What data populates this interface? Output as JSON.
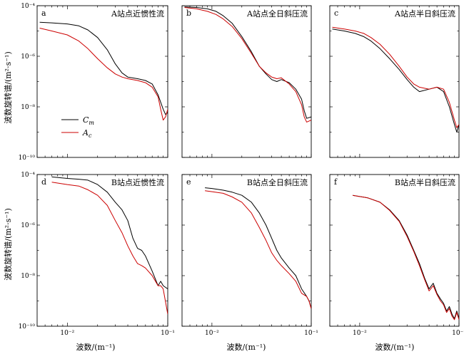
{
  "figure": {
    "ylabel": "波数旋转谱/(m²·s⁻¹)",
    "xlabel": "波数/(m⁻¹)"
  },
  "legend": {
    "entries": [
      {
        "label": "Cm",
        "color": "#000000"
      },
      {
        "label": "Ac",
        "color": "#cc0000"
      }
    ],
    "placement": "panel-a-lower-left"
  },
  "chart_data": [
    {
      "type": "line",
      "letter": "a",
      "title": "A站点近惯性流",
      "xscale": "log",
      "yscale": "log",
      "xlim": [
        0.005,
        0.1
      ],
      "ylim": [
        1e-10,
        0.0001
      ],
      "xtick_labels": [],
      "ytick_labels": [
        "10⁻⁴",
        "10⁻⁶",
        "10⁻⁸",
        "10⁻¹⁰"
      ],
      "series": [
        {
          "name": "Cm",
          "color": "#000000",
          "x": [
            0.0053,
            0.007,
            0.01,
            0.013,
            0.016,
            0.02,
            0.025,
            0.03,
            0.035,
            0.04,
            0.05,
            0.06,
            0.07,
            0.08,
            0.09,
            0.095,
            0.1
          ],
          "y": [
            2.2e-05,
            2.1e-05,
            1.9e-05,
            1.6e-05,
            1.1e-05,
            5.5e-06,
            1.8e-06,
            5e-07,
            2.2e-07,
            1.5e-07,
            1.3e-07,
            1.1e-07,
            8e-08,
            3e-08,
            8e-09,
            5e-09,
            6e-09
          ]
        },
        {
          "name": "Ac",
          "color": "#cc0000",
          "x": [
            0.0053,
            0.007,
            0.01,
            0.013,
            0.016,
            0.02,
            0.025,
            0.03,
            0.035,
            0.04,
            0.05,
            0.06,
            0.07,
            0.08,
            0.085,
            0.09,
            0.095,
            0.1
          ],
          "y": [
            1.3e-05,
            1e-05,
            7e-06,
            4e-06,
            2e-06,
            8e-07,
            3.5e-07,
            2e-07,
            1.5e-07,
            1.3e-07,
            1.1e-07,
            9e-08,
            6e-08,
            2.5e-08,
            8e-09,
            3e-09,
            4e-09,
            8e-09
          ]
        }
      ]
    },
    {
      "type": "line",
      "letter": "b",
      "title": "A站点全日斜压流",
      "xscale": "log",
      "yscale": "log",
      "xlim": [
        0.005,
        0.1
      ],
      "ylim": [
        1e-10,
        0.0001
      ],
      "xtick_labels": [],
      "ytick_labels": [],
      "series": [
        {
          "name": "Cm",
          "color": "#000000",
          "x": [
            0.0053,
            0.007,
            0.009,
            0.011,
            0.013,
            0.016,
            0.02,
            0.025,
            0.03,
            0.035,
            0.04,
            0.045,
            0.05,
            0.06,
            0.07,
            0.08,
            0.085,
            0.09,
            0.1
          ],
          "y": [
            9e-05,
            8.5e-05,
            7.5e-05,
            6e-05,
            4e-05,
            2e-05,
            6e-06,
            1.5e-06,
            4e-07,
            2e-07,
            1.2e-07,
            1e-07,
            1.2e-07,
            9e-08,
            5e-08,
            2e-08,
            7e-09,
            3.5e-09,
            4e-09
          ]
        },
        {
          "name": "Ac",
          "color": "#cc0000",
          "x": [
            0.0053,
            0.007,
            0.009,
            0.011,
            0.013,
            0.016,
            0.02,
            0.025,
            0.03,
            0.035,
            0.04,
            0.045,
            0.05,
            0.06,
            0.07,
            0.08,
            0.085,
            0.09,
            0.1
          ],
          "y": [
            8.5e-05,
            7.5e-05,
            6e-05,
            4.5e-05,
            3e-05,
            1.5e-05,
            5e-06,
            1.3e-06,
            4e-07,
            2.2e-07,
            1.5e-07,
            1.3e-07,
            1.4e-07,
            8e-08,
            4e-08,
            1.2e-08,
            4e-09,
            2.5e-09,
            3e-09
          ]
        }
      ]
    },
    {
      "type": "line",
      "letter": "c",
      "title": "A站点半日斜压流",
      "xscale": "log",
      "yscale": "log",
      "xlim": [
        0.005,
        0.1
      ],
      "ylim": [
        1e-10,
        0.0001
      ],
      "xtick_labels": [],
      "ytick_labels": [],
      "series": [
        {
          "name": "Cm",
          "color": "#000000",
          "x": [
            0.0053,
            0.007,
            0.009,
            0.011,
            0.013,
            0.016,
            0.02,
            0.025,
            0.03,
            0.035,
            0.04,
            0.05,
            0.06,
            0.07,
            0.08,
            0.09,
            0.095,
            0.1
          ],
          "y": [
            1.2e-05,
            1e-05,
            8e-06,
            6e-06,
            4e-06,
            2e-06,
            8e-07,
            3e-07,
            1.2e-07,
            6e-08,
            4e-08,
            5e-08,
            6e-08,
            4e-08,
            1e-08,
            2e-09,
            1e-09,
            2e-09
          ]
        },
        {
          "name": "Ac",
          "color": "#cc0000",
          "x": [
            0.0053,
            0.007,
            0.009,
            0.011,
            0.013,
            0.016,
            0.02,
            0.025,
            0.03,
            0.035,
            0.04,
            0.05,
            0.06,
            0.07,
            0.08,
            0.09,
            0.095,
            0.1
          ],
          "y": [
            1.4e-05,
            1.2e-05,
            1e-05,
            8e-06,
            5.5e-06,
            3e-06,
            1.2e-06,
            4e-07,
            1.5e-07,
            8e-08,
            6e-08,
            5e-08,
            6e-08,
            5e-08,
            1.5e-08,
            3e-09,
            1.5e-09,
            2e-09
          ]
        }
      ]
    },
    {
      "type": "line",
      "letter": "d",
      "title": "B站点近惯性流",
      "xscale": "log",
      "yscale": "log",
      "xlim": [
        0.005,
        0.1
      ],
      "ylim": [
        1e-10,
        0.0001
      ],
      "xtick_labels": [
        "10⁻²",
        "10⁻¹"
      ],
      "ytick_labels": [
        "10⁻⁴",
        "10⁻⁶",
        "10⁻⁸",
        "10⁻¹⁰"
      ],
      "series": [
        {
          "name": "Cm",
          "color": "#000000",
          "x": [
            0.007,
            0.01,
            0.013,
            0.016,
            0.02,
            0.025,
            0.03,
            0.035,
            0.04,
            0.045,
            0.05,
            0.055,
            0.06,
            0.07,
            0.08,
            0.085,
            0.09,
            0.1
          ],
          "y": [
            8e-05,
            7e-05,
            6.5e-05,
            6e-05,
            4e-05,
            2e-05,
            8e-06,
            4e-06,
            1.5e-06,
            3e-07,
            1.2e-07,
            1e-07,
            6e-08,
            1.5e-08,
            4e-09,
            6e-09,
            4e-09,
            3e-09
          ]
        },
        {
          "name": "Ac",
          "color": "#cc0000",
          "x": [
            0.007,
            0.01,
            0.013,
            0.016,
            0.02,
            0.025,
            0.03,
            0.035,
            0.04,
            0.045,
            0.05,
            0.055,
            0.06,
            0.07,
            0.08,
            0.085,
            0.09,
            0.1
          ],
          "y": [
            5e-05,
            4e-05,
            3.5e-05,
            2.5e-05,
            1.5e-05,
            6e-06,
            1.5e-06,
            5e-07,
            1.5e-07,
            6e-08,
            3e-08,
            2.5e-08,
            2e-08,
            1e-08,
            4e-09,
            4e-09,
            3e-09,
            3e-10
          ]
        }
      ]
    },
    {
      "type": "line",
      "letter": "e",
      "title": "B站点全日斜压流",
      "xscale": "log",
      "yscale": "log",
      "xlim": [
        0.005,
        0.1
      ],
      "ylim": [
        1e-10,
        0.0001
      ],
      "xtick_labels": [
        "10⁻²",
        "10⁻¹"
      ],
      "ytick_labels": [],
      "series": [
        {
          "name": "Cm",
          "color": "#000000",
          "x": [
            0.0085,
            0.01,
            0.013,
            0.016,
            0.02,
            0.025,
            0.03,
            0.035,
            0.04,
            0.045,
            0.05,
            0.06,
            0.07,
            0.08,
            0.09,
            0.095,
            0.1
          ],
          "y": [
            3e-05,
            2.8e-05,
            2.4e-05,
            2e-05,
            1.5e-05,
            8e-06,
            3e-06,
            1e-06,
            3e-07,
            1e-07,
            5e-08,
            2e-08,
            1e-08,
            3e-09,
            1.5e-09,
            1e-09,
            5e-10
          ]
        },
        {
          "name": "Ac",
          "color": "#cc0000",
          "x": [
            0.0085,
            0.01,
            0.013,
            0.016,
            0.02,
            0.025,
            0.03,
            0.035,
            0.04,
            0.045,
            0.05,
            0.06,
            0.07,
            0.08,
            0.09,
            0.095,
            0.1
          ],
          "y": [
            2.3e-05,
            2.1e-05,
            1.8e-05,
            1.3e-05,
            8e-06,
            3e-06,
            8e-07,
            2.5e-07,
            8e-08,
            4e-08,
            2.5e-08,
            1.2e-08,
            6e-09,
            2e-09,
            1.5e-09,
            1e-09,
            5e-10
          ]
        }
      ]
    },
    {
      "type": "line",
      "letter": "f",
      "title": "B站点半日斜压流",
      "xscale": "log",
      "yscale": "log",
      "xlim": [
        0.005,
        0.1
      ],
      "ylim": [
        1e-10,
        0.0001
      ],
      "xtick_labels": [
        "10⁻²",
        "10⁻¹"
      ],
      "ytick_labels": [],
      "series": [
        {
          "name": "Cm",
          "color": "#000000",
          "x": [
            0.0085,
            0.012,
            0.016,
            0.02,
            0.025,
            0.03,
            0.035,
            0.04,
            0.045,
            0.05,
            0.055,
            0.06,
            0.065,
            0.07,
            0.075,
            0.08,
            0.085,
            0.09,
            0.095,
            0.1
          ],
          "y": [
            1.5e-05,
            1.2e-05,
            8e-06,
            4e-06,
            1.5e-06,
            4e-07,
            1e-07,
            3e-08,
            8e-09,
            3e-09,
            5e-09,
            2e-09,
            1.2e-09,
            8e-10,
            4e-10,
            6e-10,
            3e-10,
            2e-10,
            4e-10,
            2e-10
          ]
        },
        {
          "name": "Ac",
          "color": "#cc0000",
          "x": [
            0.0085,
            0.012,
            0.016,
            0.02,
            0.025,
            0.03,
            0.035,
            0.04,
            0.045,
            0.05,
            0.055,
            0.06,
            0.065,
            0.07,
            0.075,
            0.08,
            0.085,
            0.09,
            0.095,
            0.1
          ],
          "y": [
            1.5e-05,
            1.2e-05,
            8e-06,
            3.8e-06,
            1.4e-06,
            3.5e-07,
            9e-08,
            2.5e-08,
            7e-09,
            2.5e-09,
            4e-09,
            1.8e-09,
            1e-09,
            7e-10,
            3.5e-10,
            5e-10,
            2.5e-10,
            1.8e-10,
            3.5e-10,
            1.8e-10
          ]
        }
      ]
    }
  ]
}
